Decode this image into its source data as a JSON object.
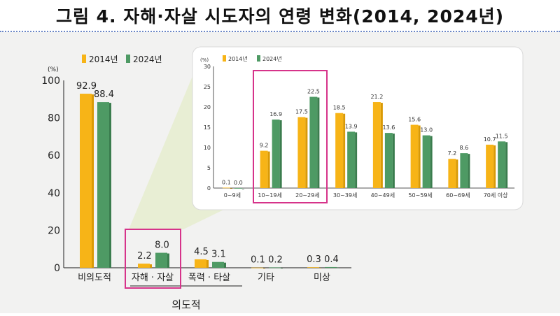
{
  "title": "그림 4. 자해·자살 시도자의 연령 변화(2014, 2024년)",
  "colors": {
    "y2014": "#f7b417",
    "y2014_dark": "#d99a06",
    "y2024": "#4e9a64",
    "y2024_dark": "#3b7d4e",
    "highlight": "#d6338a",
    "panel_bg": "#ffffff",
    "wedge": "#e6edcf"
  },
  "legend": [
    "2014년",
    "2024년"
  ],
  "chart_data": [
    {
      "type": "bar",
      "ylabel": "(%)",
      "ylim": [
        0,
        100
      ],
      "yticks": [
        "0",
        "20",
        "40",
        "60",
        "80",
        "100"
      ],
      "categories": [
        "비의도적",
        "자해 · 자살",
        "폭력 · 타살",
        "기타",
        "미상"
      ],
      "group_label": "의도적",
      "highlighted_category": "자해 · 자살",
      "series": [
        {
          "name": "2014년",
          "values": [
            92.9,
            2.2,
            4.5,
            0.1,
            0.3
          ],
          "labels": [
            "92.9",
            "2.2",
            "4.5",
            "0.1",
            "0.3"
          ]
        },
        {
          "name": "2024년",
          "values": [
            88.4,
            8.0,
            3.1,
            0.2,
            0.4
          ],
          "labels": [
            "88.4",
            "8.0",
            "3.1",
            "0.2",
            "0.4"
          ]
        }
      ]
    },
    {
      "type": "bar",
      "ylabel": "(%)",
      "ylim": [
        0,
        30
      ],
      "yticks": [
        "0",
        "5",
        "10",
        "15",
        "20",
        "25",
        "30"
      ],
      "categories": [
        "0~9세",
        "10~19세",
        "20~29세",
        "30~39세",
        "40~49세",
        "50~59세",
        "60~69세",
        "70세 이상"
      ],
      "highlighted_categories": [
        "10~19세",
        "20~29세"
      ],
      "series": [
        {
          "name": "2014년",
          "values": [
            0.1,
            9.2,
            17.5,
            18.5,
            21.2,
            15.6,
            7.2,
            10.7
          ],
          "labels": [
            "0.1",
            "9.2",
            "17.5",
            "18.5",
            "21.2",
            "15.6",
            "7.2",
            "10.7"
          ]
        },
        {
          "name": "2024년",
          "values": [
            0.0,
            16.9,
            22.5,
            13.9,
            13.6,
            13.0,
            8.6,
            11.5
          ],
          "labels": [
            "0.0",
            "16.9",
            "22.5",
            "13.9",
            "13.6",
            "13.0",
            "8.6",
            "11.5"
          ]
        }
      ]
    }
  ]
}
